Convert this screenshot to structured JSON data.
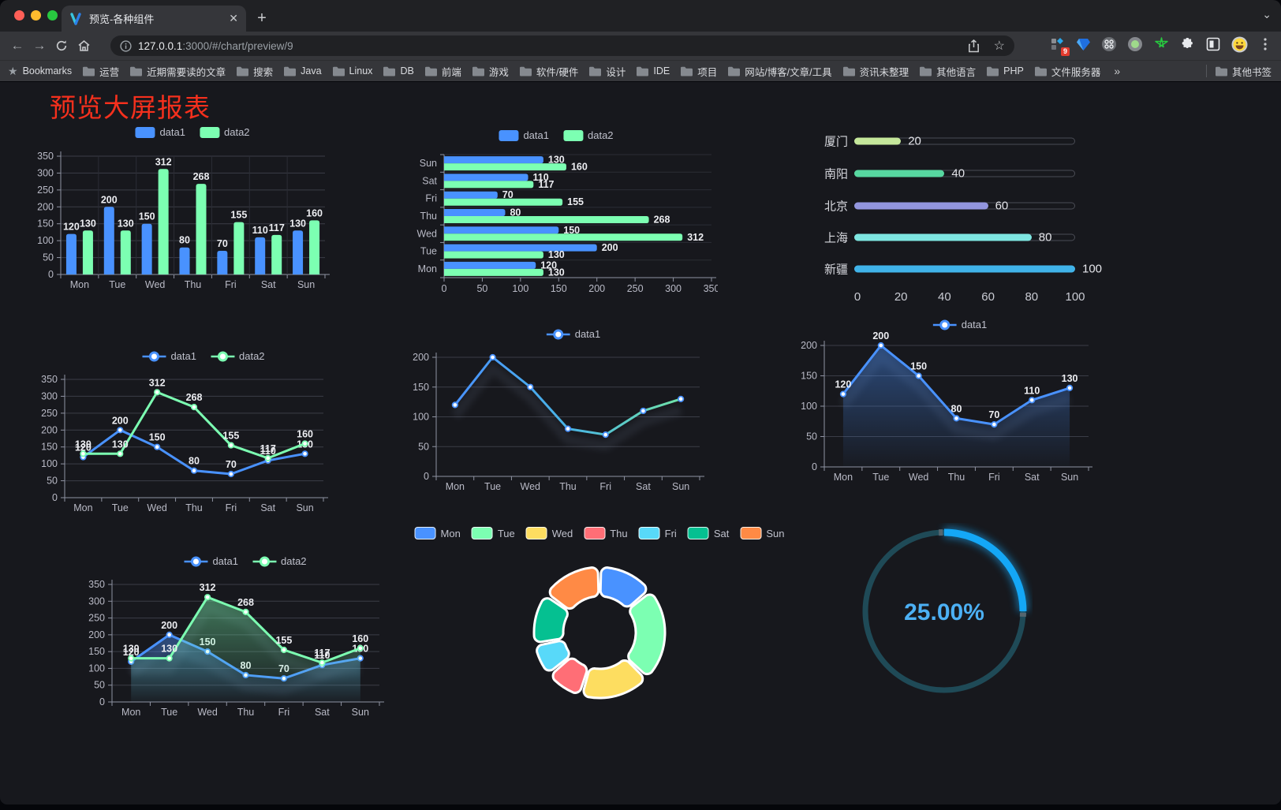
{
  "browser": {
    "tab": {
      "title": "预览-各种组件"
    },
    "url": {
      "host": "127.0.0.1",
      "rest": ":3000/#/chart/preview/9"
    },
    "bookmarks_label": "Bookmarks",
    "bookmarks": [
      "运营",
      "近期需要读的文章",
      "搜索",
      "Java",
      "Linux",
      "DB",
      "前端",
      "游戏",
      "软件/硬件",
      "设计",
      "IDE",
      "项目",
      "网站/博客/文章/工具",
      "资讯未整理",
      "其他语言",
      "PHP",
      "文件服务器"
    ],
    "overflow_label": "»",
    "other_bookmarks": "其他书签",
    "extension_badge": "9"
  },
  "page": {
    "title": "预览大屏报表",
    "title_color": "#f5301d",
    "background": "#17181d"
  },
  "palette": {
    "blue": "#4992ff",
    "green": "#7cffb2",
    "yellow": "#fddd60",
    "red": "#ff6e76",
    "cyan": "#58d9f9",
    "teal": "#05c091",
    "orange": "#ff8a45",
    "axis_text": "#b9bac6",
    "grid": "#3b3d47",
    "axis_line": "#8f93a2"
  },
  "chart_data": [
    {
      "id": "grouped-bar",
      "type": "bar",
      "categories": [
        "Mon",
        "Tue",
        "Wed",
        "Thu",
        "Fri",
        "Sat",
        "Sun"
      ],
      "series": [
        {
          "name": "data1",
          "color": "#4992ff",
          "values": [
            120,
            200,
            150,
            80,
            70,
            110,
            130
          ]
        },
        {
          "name": "data2",
          "color": "#7cffb2",
          "values": [
            130,
            130,
            312,
            268,
            155,
            117,
            160
          ]
        }
      ],
      "ylim": [
        0,
        350
      ],
      "yticks": [
        0,
        50,
        100,
        150,
        200,
        250,
        300,
        350
      ],
      "legend_position": "top",
      "value_labels": true
    },
    {
      "id": "grouped-bar-horizontal",
      "type": "bar-horizontal",
      "categories": [
        "Mon",
        "Tue",
        "Wed",
        "Thu",
        "Fri",
        "Sat",
        "Sun"
      ],
      "series": [
        {
          "name": "data1",
          "color": "#4992ff",
          "values": [
            120,
            200,
            150,
            80,
            70,
            110,
            130
          ]
        },
        {
          "name": "data2",
          "color": "#7cffb2",
          "values": [
            130,
            130,
            312,
            268,
            155,
            117,
            160
          ]
        }
      ],
      "xlim": [
        0,
        350
      ],
      "xticks": [
        0,
        50,
        100,
        150,
        200,
        250,
        300,
        350
      ],
      "legend_position": "top",
      "value_labels": true
    },
    {
      "id": "city-progress",
      "type": "progress",
      "xlim": [
        0,
        100
      ],
      "xticks": [
        0,
        20,
        40,
        60,
        80,
        100
      ],
      "rows": [
        {
          "label": "厦门",
          "value": 20,
          "color": "#c5e79b"
        },
        {
          "label": "南阳",
          "value": 40,
          "color": "#57d7a0"
        },
        {
          "label": "北京",
          "value": 60,
          "color": "#9295de"
        },
        {
          "label": "上海",
          "value": 80,
          "color": "#7ee6e1"
        },
        {
          "label": "新疆",
          "value": 100,
          "color": "#40b3e9"
        }
      ]
    },
    {
      "id": "two-line",
      "type": "line",
      "categories": [
        "Mon",
        "Tue",
        "Wed",
        "Thu",
        "Fri",
        "Sat",
        "Sun"
      ],
      "series": [
        {
          "name": "data1",
          "color": "#4992ff",
          "values": [
            120,
            200,
            150,
            80,
            70,
            110,
            130
          ]
        },
        {
          "name": "data2",
          "color": "#7cffb2",
          "values": [
            130,
            130,
            312,
            268,
            155,
            117,
            160
          ]
        }
      ],
      "ylim": [
        0,
        350
      ],
      "yticks": [
        0,
        50,
        100,
        150,
        200,
        250,
        300,
        350
      ],
      "legend_position": "top",
      "value_labels": true
    },
    {
      "id": "gradient-line",
      "type": "line",
      "categories": [
        "Mon",
        "Tue",
        "Wed",
        "Thu",
        "Fri",
        "Sat",
        "Sun"
      ],
      "series": [
        {
          "name": "data1",
          "color": "#4992ff",
          "gradient": [
            "#4992ff",
            "#49b4e4",
            "#6fe2a8"
          ],
          "values": [
            120,
            200,
            150,
            80,
            70,
            110,
            130
          ]
        }
      ],
      "ylim": [
        0,
        200
      ],
      "yticks": [
        0,
        50,
        100,
        150,
        200
      ],
      "legend_position": "top",
      "value_labels": false,
      "shadow": true
    },
    {
      "id": "area-line",
      "type": "line",
      "categories": [
        "Mon",
        "Tue",
        "Wed",
        "Thu",
        "Fri",
        "Sat",
        "Sun"
      ],
      "series": [
        {
          "name": "data1",
          "color": "#4992ff",
          "area": true,
          "values": [
            120,
            200,
            150,
            80,
            70,
            110,
            130
          ]
        }
      ],
      "ylim": [
        0,
        200
      ],
      "yticks": [
        0,
        50,
        100,
        150,
        200
      ],
      "legend_position": "top",
      "value_labels": true,
      "shadow": true
    },
    {
      "id": "two-area-line",
      "type": "line",
      "categories": [
        "Mon",
        "Tue",
        "Wed",
        "Thu",
        "Fri",
        "Sat",
        "Sun"
      ],
      "series": [
        {
          "name": "data1",
          "color": "#4992ff",
          "area": true,
          "values": [
            120,
            200,
            150,
            80,
            70,
            110,
            130
          ]
        },
        {
          "name": "data2",
          "color": "#7cffb2",
          "area": true,
          "values": [
            130,
            130,
            312,
            268,
            155,
            117,
            160
          ]
        }
      ],
      "ylim": [
        0,
        350
      ],
      "yticks": [
        0,
        50,
        100,
        150,
        200,
        250,
        300,
        350
      ],
      "legend_position": "top",
      "value_labels": true,
      "shadow": true
    },
    {
      "id": "weekday-donut",
      "type": "pie",
      "inner_radius_ratio": 0.55,
      "slices": [
        {
          "label": "Mon",
          "value": 120,
          "color": "#4992ff"
        },
        {
          "label": "Tue",
          "value": 200,
          "color": "#7cffb2"
        },
        {
          "label": "Wed",
          "value": 150,
          "color": "#fddd60"
        },
        {
          "label": "Thu",
          "value": 80,
          "color": "#ff6e76"
        },
        {
          "label": "Fri",
          "value": 70,
          "color": "#58d9f9"
        },
        {
          "label": "Sat",
          "value": 110,
          "color": "#05c091"
        },
        {
          "label": "Sun",
          "value": 130,
          "color": "#ff8a45"
        }
      ]
    },
    {
      "id": "percent-gauge",
      "type": "gauge",
      "value": 25,
      "max": 100,
      "label": "25.00%",
      "color": "#14a7f6",
      "track_color": "#1f4a57",
      "text_color": "#4cb0f4"
    }
  ]
}
